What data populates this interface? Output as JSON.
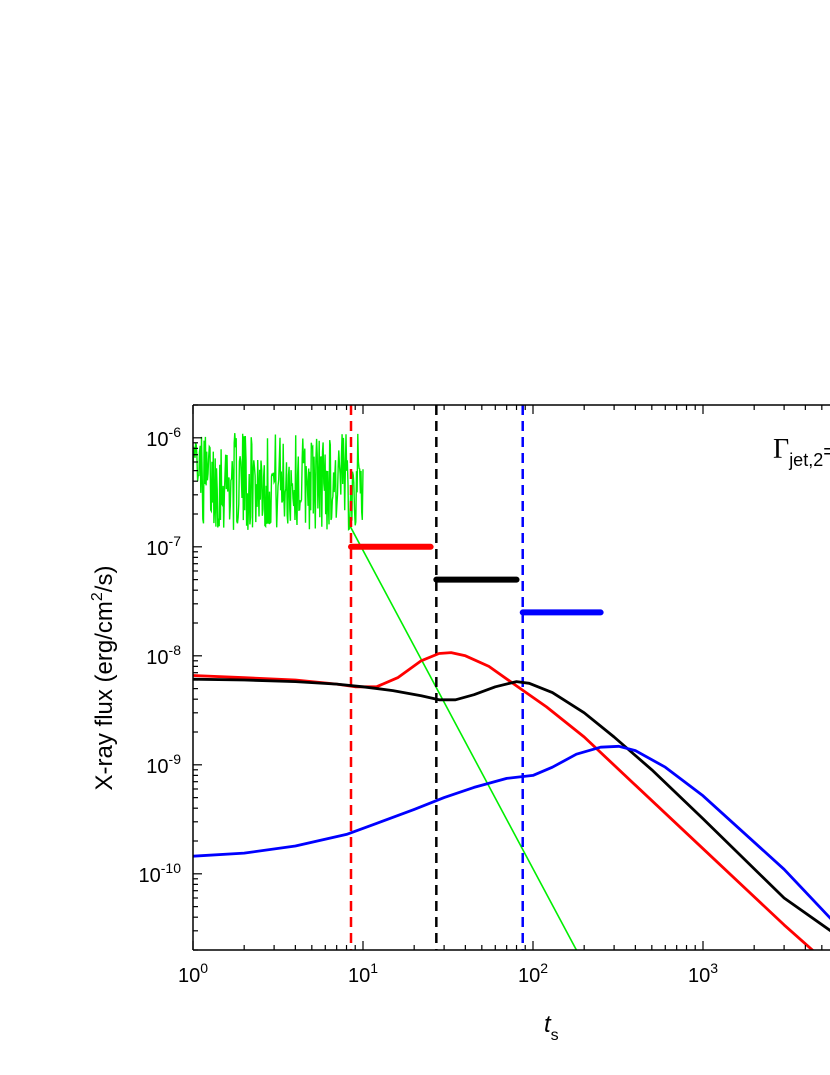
{
  "chart_data": {
    "type": "line",
    "xlabel": "t",
    "xlabel_sub": "s",
    "ylabel_main": "X-ray flux (erg/cm",
    "ylabel_sup": "2",
    "ylabel_end": "/s)",
    "xscale": "log",
    "yscale": "log",
    "xlim": [
      1,
      6000
    ],
    "ylim": [
      2e-11,
      2e-06
    ],
    "x_ticks": [
      {
        "value": 1,
        "base": "10",
        "exp": "0"
      },
      {
        "value": 10,
        "base": "10",
        "exp": "1"
      },
      {
        "value": 100,
        "base": "10",
        "exp": "2"
      },
      {
        "value": 1000,
        "base": "10",
        "exp": "3"
      }
    ],
    "y_ticks": [
      {
        "value": 1e-10,
        "base": "10",
        "exp": "-10"
      },
      {
        "value": 1e-09,
        "base": "10",
        "exp": "-9"
      },
      {
        "value": 1e-08,
        "base": "10",
        "exp": "-8"
      },
      {
        "value": 1e-07,
        "base": "10",
        "exp": "-7"
      },
      {
        "value": 1e-06,
        "base": "10",
        "exp": "-6"
      }
    ],
    "annotation": {
      "base": "Γ",
      "sub": "jet,2",
      "rest": "="
    },
    "series": [
      {
        "color": "#ff0000",
        "x": [
          1,
          2,
          4,
          7,
          9,
          12,
          16,
          22,
          28,
          33,
          40,
          55,
          80,
          120,
          200,
          400,
          1000,
          3000,
          6000
        ],
        "y": [
          6.6e-09,
          6.3e-09,
          6e-09,
          5.5e-09,
          5.2e-09,
          5.2e-09,
          6.3e-09,
          9e-09,
          1.05e-08,
          1.07e-08,
          1e-08,
          8e-09,
          5.3e-09,
          3.4e-09,
          1.8e-09,
          6.5e-10,
          1.7e-10,
          3.4e-11,
          1.3e-11
        ]
      },
      {
        "color": "#000000",
        "x": [
          1,
          2,
          4,
          7,
          10,
          15,
          22,
          28,
          35,
          45,
          60,
          80,
          95,
          130,
          200,
          300,
          500,
          1000,
          3000,
          6000
        ],
        "y": [
          6.1e-09,
          6e-09,
          5.8e-09,
          5.5e-09,
          5.2e-09,
          4.8e-09,
          4.3e-09,
          3.95e-09,
          3.95e-09,
          4.4e-09,
          5.2e-09,
          5.8e-09,
          5.6e-09,
          4.6e-09,
          3e-09,
          1.8e-09,
          9e-10,
          3.2e-10,
          6e-11,
          2.8e-11
        ]
      },
      {
        "color": "#0000ff",
        "x": [
          1,
          2,
          4,
          8,
          12,
          20,
          30,
          45,
          70,
          100,
          130,
          180,
          250,
          320,
          400,
          600,
          1000,
          3000,
          6000
        ],
        "y": [
          1.45e-10,
          1.55e-10,
          1.8e-10,
          2.3e-10,
          2.9e-10,
          3.9e-10,
          5e-10,
          6.2e-10,
          7.5e-10,
          8e-10,
          9.5e-10,
          1.25e-09,
          1.45e-09,
          1.48e-09,
          1.35e-09,
          9.5e-10,
          5.2e-10,
          1.1e-10,
          3.5e-11
        ]
      }
    ],
    "green_noise": {
      "color": "#00ee00",
      "x_start": 1,
      "x_end": 10,
      "low": 1e-07,
      "high": 1.4e-06
    },
    "green_decay": {
      "color": "#00ee00",
      "x": [
        8.3,
        180
      ],
      "y": [
        1.6e-07,
        2e-11
      ]
    },
    "vertical_lines": [
      {
        "x": 8.5,
        "color": "#ff0000"
      },
      {
        "x": 27,
        "color": "#000000"
      },
      {
        "x": 87,
        "color": "#0000ff"
      }
    ],
    "horizontal_bars": [
      {
        "x": [
          8.5,
          25
        ],
        "y": 1e-07,
        "color": "#ff0000"
      },
      {
        "x": [
          27,
          80
        ],
        "y": 5e-08,
        "color": "#000000"
      },
      {
        "x": [
          87,
          250
        ],
        "y": 2.5e-08,
        "color": "#0000ff"
      }
    ]
  }
}
